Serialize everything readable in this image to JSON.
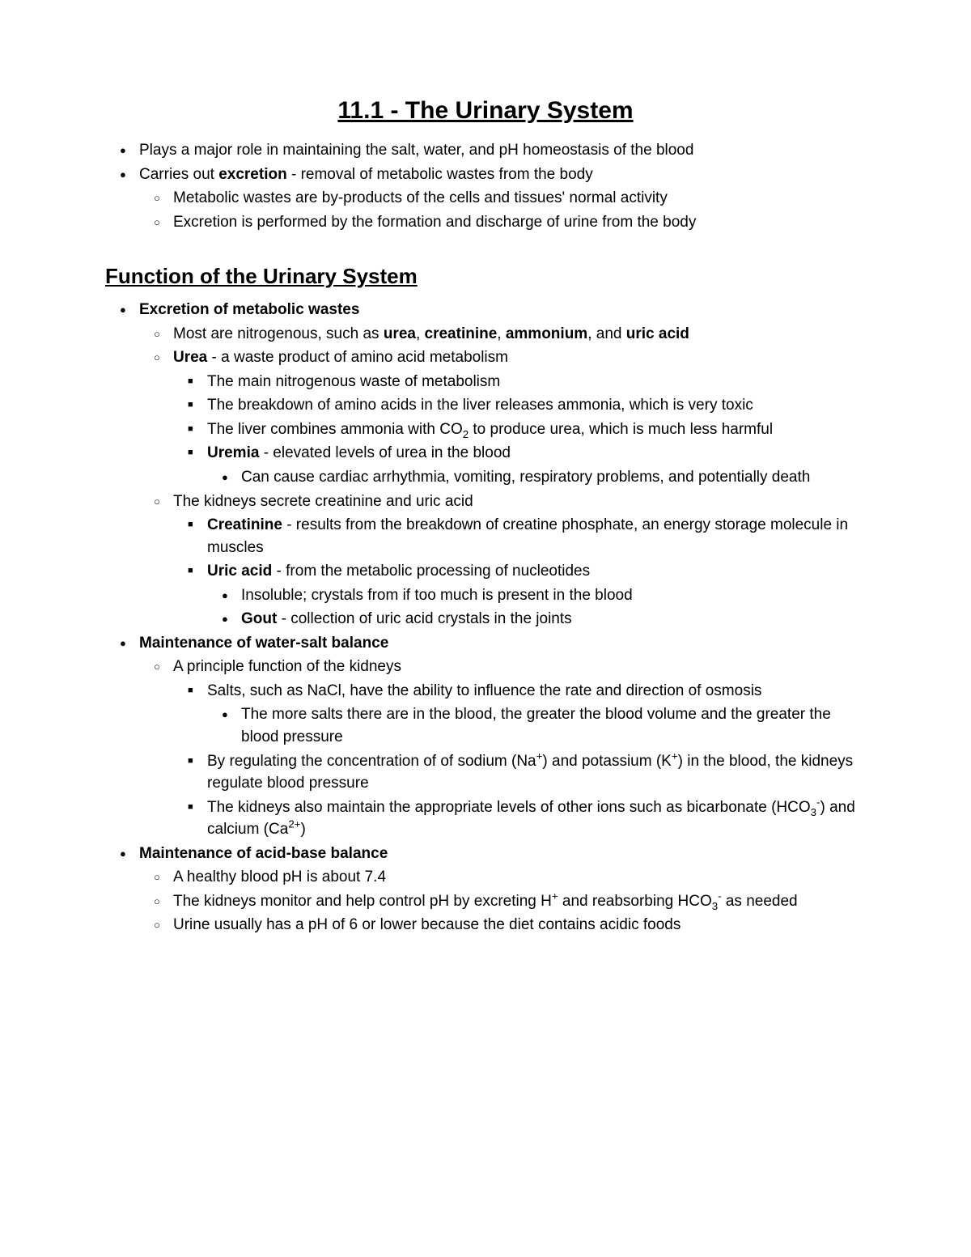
{
  "title": "11.1 - The Urinary System",
  "intro": {
    "i1": "Plays a major role in maintaining the salt, water, and pH homeostasis of the blood",
    "i2a": "Carries out ",
    "i2b": "excretion",
    "i2c": " - removal of metabolic wastes from the body",
    "i2_1": "Metabolic wastes are by-products of the cells and tissues' normal activity",
    "i2_2": "Excretion is performed by the formation and discharge of urine from the body"
  },
  "section1_title": "Function of the Urinary System",
  "f1": {
    "head": "Excretion of metabolic wastes",
    "a1a": "Most are nitrogenous, such as ",
    "a1_urea": "urea",
    "a1_comma1": ", ",
    "a1_creat": "creatinine",
    "a1_comma2": ", ",
    "a1_amm": "ammonium",
    "a1_comma3": ", and ",
    "a1_uric": "uric acid",
    "a2_urea": "Urea",
    "a2_rest": " - a waste product of amino acid metabolism",
    "a2_s1": "The main nitrogenous waste of metabolism",
    "a2_s2": "The breakdown of amino acids in the liver releases ammonia, which is very toxic",
    "a2_s3a": "The liver combines ammonia with CO",
    "a2_s3b": " to produce urea, which is much less harmful",
    "a2_s4_b": "Uremia",
    "a2_s4_rest": " - elevated levels of urea in the blood",
    "a2_s4_1": "Can cause cardiac arrhythmia, vomiting, respiratory problems, and potentially death",
    "a3": "The kidneys secrete creatinine and uric acid",
    "a3_s1_b": "Creatinine",
    "a3_s1_rest": " - results from the breakdown of creatine phosphate, an energy storage molecule in muscles",
    "a3_s2_b": "Uric acid",
    "a3_s2_rest": " - from the metabolic processing of nucleotides",
    "a3_s2_1": "Insoluble; crystals from if too much is present in the blood",
    "a3_s2_2_b": "Gout",
    "a3_s2_2_rest": " - collection of uric acid crystals in the joints"
  },
  "f2": {
    "head": "Maintenance of water-salt balance",
    "a1": "A principle function of the kidneys",
    "a1_s1": "Salts, such as NaCl, have the ability to influence the rate and direction of osmosis",
    "a1_s1_1": "The more salts there are in the blood, the greater the blood volume and the greater the blood pressure",
    "a1_s2a": "By regulating the concentration of of sodium (Na",
    "a1_s2b": ") and potassium (K",
    "a1_s2c": ") in the blood, the kidneys regulate blood pressure",
    "a1_s3a": "The kidneys also maintain the appropriate levels of other ions such as bicarbonate (HCO",
    "a1_s3b": ") and calcium (Ca",
    "a1_s3c": ")"
  },
  "f3": {
    "head": "Maintenance of acid-base balance",
    "a1": "A healthy blood pH is about 7.4",
    "a2a": "The kidneys monitor and help control pH by excreting H",
    "a2b": " and reabsorbing HCO",
    "a2c": " as needed",
    "a3": "Urine usually has a pH of 6 or lower because the diet contains acidic foods"
  }
}
